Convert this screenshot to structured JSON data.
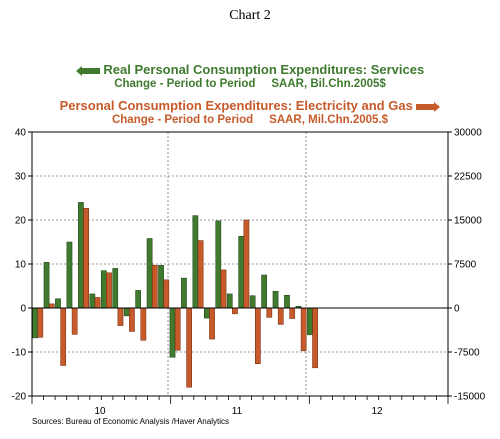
{
  "title": "Chart 2",
  "legend": {
    "series1_line1": "Real Personal Consumption Expenditures: Services",
    "series1_line2": "Change - Period to Period     SAAR, Bil.Chn.2005$",
    "series2_line1": "Personal Consumption Expenditures: Electricity and Gas",
    "series2_line2": "Change - Period to Period     SAAR, Mil.Chn.2005.$"
  },
  "source": "Sources:  Bureau of Economic Analysis /Haver Analytics",
  "colors": {
    "services": "#3f7a2f",
    "electricity": "#c75a2a",
    "axis": "#000000",
    "grid": "#777777"
  },
  "chart_data": {
    "type": "bar",
    "x_tick_labels": [
      "10",
      "11",
      "12"
    ],
    "left_axis": {
      "ylim": [
        -20,
        40
      ],
      "ticks": [
        "40",
        "30",
        "20",
        "10",
        "0",
        "-10",
        "-20"
      ]
    },
    "right_axis": {
      "ylim": [
        -15000,
        30000
      ],
      "ticks": [
        "30000",
        "22500",
        "15000",
        "7500",
        "0",
        "-7500",
        "-15000"
      ]
    },
    "grid": true,
    "series": [
      {
        "name": "Real Personal Consumption Expenditures: Services",
        "axis": "left",
        "values": [
          -6.8,
          10.4,
          2.1,
          15.0,
          24.0,
          3.2,
          8.5,
          9.0,
          -1.8,
          4.0,
          15.8,
          9.7,
          -11.2,
          6.8,
          21.0,
          -2.3,
          19.8,
          3.2,
          16.3,
          2.8,
          7.5,
          3.8,
          2.9,
          0.4,
          -6.1
        ]
      },
      {
        "name": "Personal Consumption Expenditures: Electricity and Gas",
        "axis": "right",
        "values": [
          -5000,
          700,
          -9800,
          -4500,
          17000,
          1800,
          6000,
          -3000,
          -4000,
          -5500,
          7300,
          4800,
          -7200,
          -13500,
          11500,
          -5300,
          6500,
          -1000,
          15000,
          -9500,
          -1600,
          -2800,
          -1800,
          -7300,
          -10200
        ]
      }
    ]
  }
}
